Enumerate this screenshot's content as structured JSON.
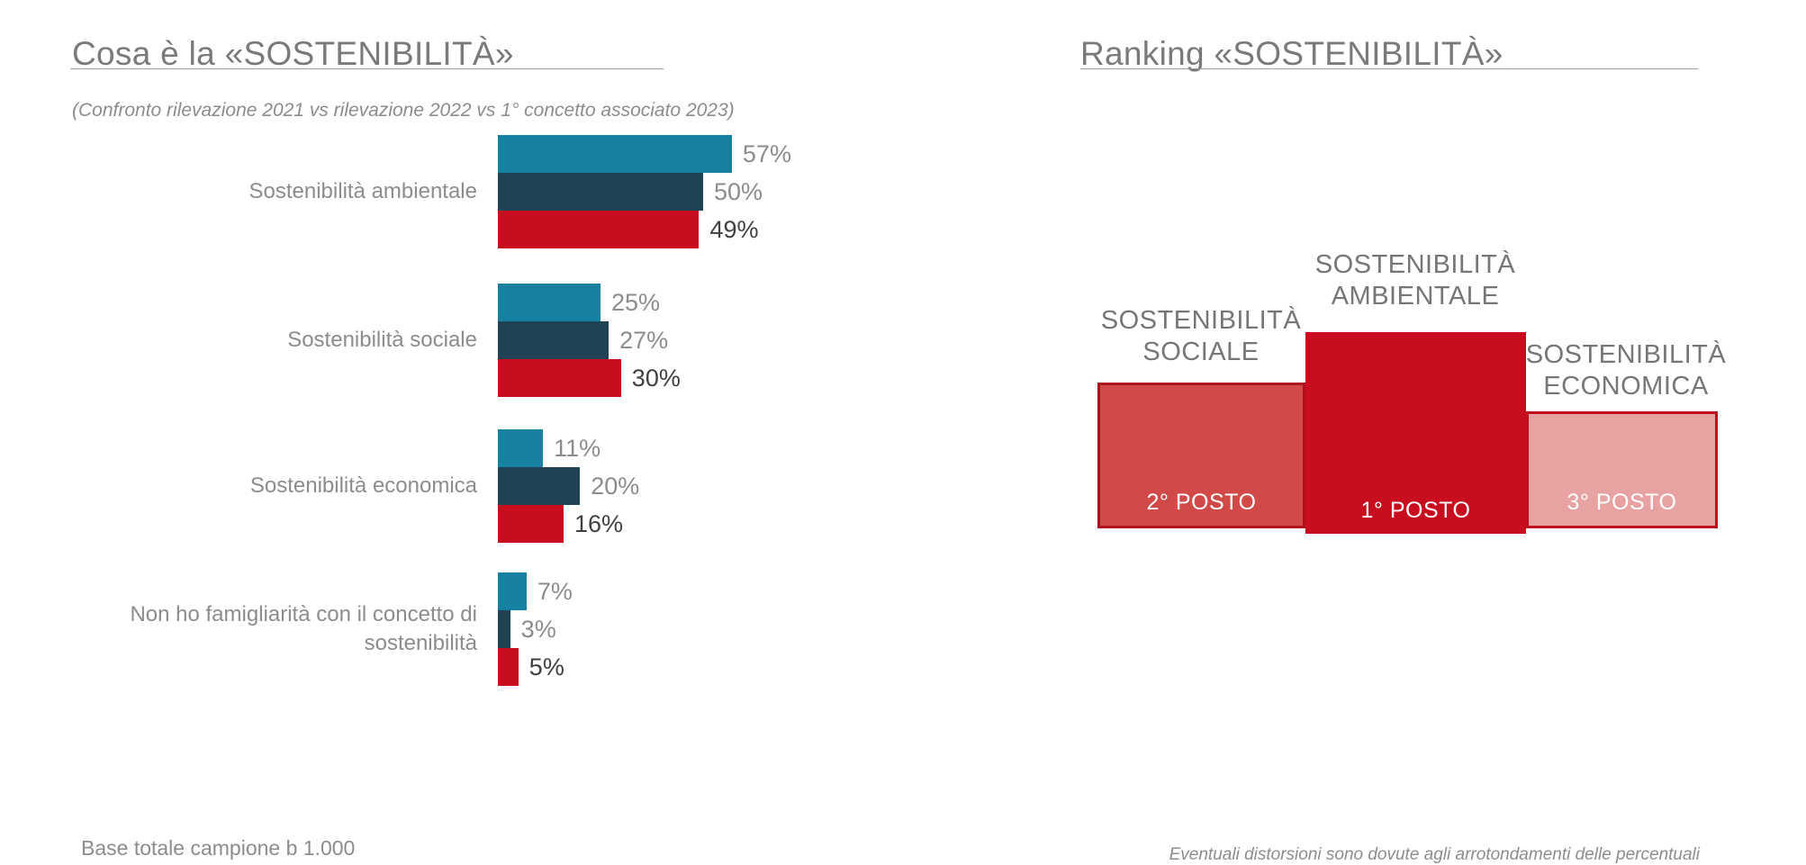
{
  "slide": {
    "background": "#FFFFFF",
    "title_color": "#7A7A7A",
    "rule_color": "#9D9D9D"
  },
  "left_panel": {
    "title": "Cosa è la «SOSTENIBILITÀ»",
    "subtitle": "(Confronto rilevazione 2021 vs rilevazione 2022 vs 1° concetto associato 2023)",
    "base_note": "Base totale campione b 1.000"
  },
  "right_panel": {
    "title": "Ranking «SOSTENIBILITÀ»",
    "footnote": "Eventuali distorsioni sono dovute agli arrotondamenti delle percentuali"
  },
  "chart_data": [
    {
      "type": "bar",
      "orientation": "horizontal",
      "title": "Cosa è la «SOSTENIBILITÀ»",
      "subtitle": "(Confronto rilevazione 2021 vs rilevazione 2022 vs 1° concetto associato 2023)",
      "value_suffix": "%",
      "grid": false,
      "legend": "none",
      "xlim": [
        0,
        60
      ],
      "categories": [
        "Sostenibilità ambientale",
        "Sostenibilità sociale",
        "Sostenibilità economica",
        "Non ho famigliarità con il concetto di sostenibilità"
      ],
      "series": [
        {
          "name": "rilevazione 2021",
          "color": "#1781A1",
          "label_color": "#8C8C8C",
          "values": [
            57,
            25,
            11,
            7
          ]
        },
        {
          "name": "rilevazione 2022",
          "color": "#1F4254",
          "label_color": "#8C8C8C",
          "values": [
            50,
            27,
            20,
            3
          ]
        },
        {
          "name": "1° concetto associato 2023",
          "color": "#C80D1E",
          "label_color": "#404040",
          "values": [
            49,
            30,
            16,
            5
          ]
        }
      ]
    },
    {
      "type": "bar",
      "subtype": "podium-ranking",
      "title": "Ranking «SOSTENIBILITÀ»",
      "columns": [
        {
          "key": "sociale",
          "label_lines": [
            "SOSTENIBILITÀ",
            "SOCIALE"
          ],
          "rank": 2,
          "rank_label": "2° POSTO",
          "fill": "#D24A47",
          "border": "#B10E1C",
          "rank_text_color": "#FFFFFF"
        },
        {
          "key": "ambientale",
          "label_lines": [
            "SOSTENIBILITÀ",
            "AMBIENTALE"
          ],
          "rank": 1,
          "rank_label": "1° POSTO",
          "fill": "#C80D1E",
          "border": "#C80D1E",
          "rank_text_color": "#FFFFFF"
        },
        {
          "key": "economica",
          "label_lines": [
            "SOSTENIBILITÀ",
            "ECONOMICA"
          ],
          "rank": 3,
          "rank_label": "3° POSTO",
          "fill": "#E8A2A1",
          "border": "#C00D1D",
          "rank_text_color": "#FFFFFF"
        }
      ]
    }
  ]
}
